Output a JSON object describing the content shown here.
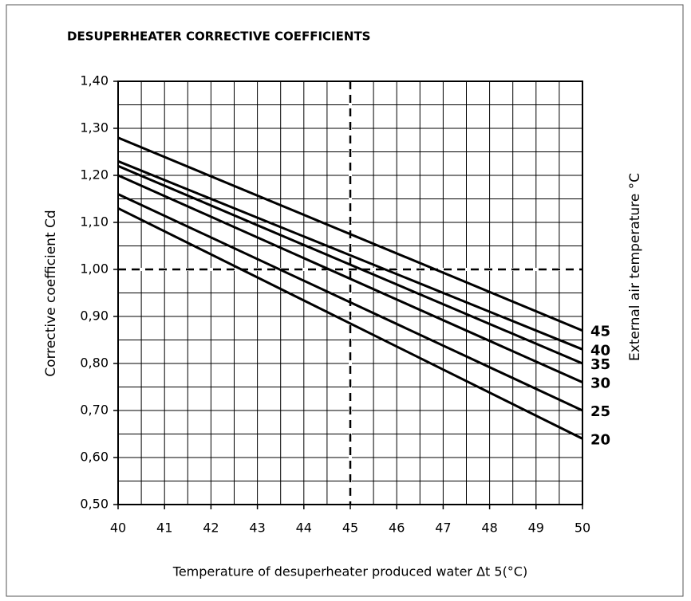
{
  "chart_data": {
    "type": "line",
    "title": "DESUPERHEATER CORRECTIVE COEFFICIENTS",
    "x_label": "Temperature of desuperheater produced water Δt 5(°C)",
    "y_label": "Corrective coefficient Cd",
    "y2_label": "External air temperature °C",
    "x": [
      40,
      50
    ],
    "series": [
      {
        "name": "45",
        "color": "#000000",
        "values": [
          1.28,
          0.87
        ]
      },
      {
        "name": "40",
        "color": "#000000",
        "values": [
          1.23,
          0.83
        ]
      },
      {
        "name": "35",
        "color": "#000000",
        "values": [
          1.22,
          0.8
        ]
      },
      {
        "name": "30",
        "color": "#000000",
        "values": [
          1.2,
          0.76
        ]
      },
      {
        "name": "25",
        "color": "#000000",
        "values": [
          1.16,
          0.7
        ]
      },
      {
        "name": "20",
        "color": "#000000",
        "values": [
          1.13,
          0.64
        ]
      }
    ],
    "xlim": [
      40,
      50
    ],
    "xticks": [
      40,
      41,
      42,
      43,
      44,
      45,
      46,
      47,
      48,
      49,
      50
    ],
    "ylim": [
      0.5,
      1.4
    ],
    "yticks": [
      {
        "value": 0.5,
        "label": "0,50"
      },
      {
        "value": 0.6,
        "label": "0,60"
      },
      {
        "value": 0.7,
        "label": "0,70"
      },
      {
        "value": 0.8,
        "label": "0,80"
      },
      {
        "value": 0.9,
        "label": "0,90"
      },
      {
        "value": 1.0,
        "label": "1,00"
      },
      {
        "value": 1.1,
        "label": "1,10"
      },
      {
        "value": 1.2,
        "label": "1,20"
      },
      {
        "value": 1.3,
        "label": "1,30"
      },
      {
        "value": 1.4,
        "label": "1,40"
      }
    ],
    "grid": true,
    "minor_grid": true,
    "reference_lines": {
      "x": 45,
      "y": 1.0
    }
  }
}
